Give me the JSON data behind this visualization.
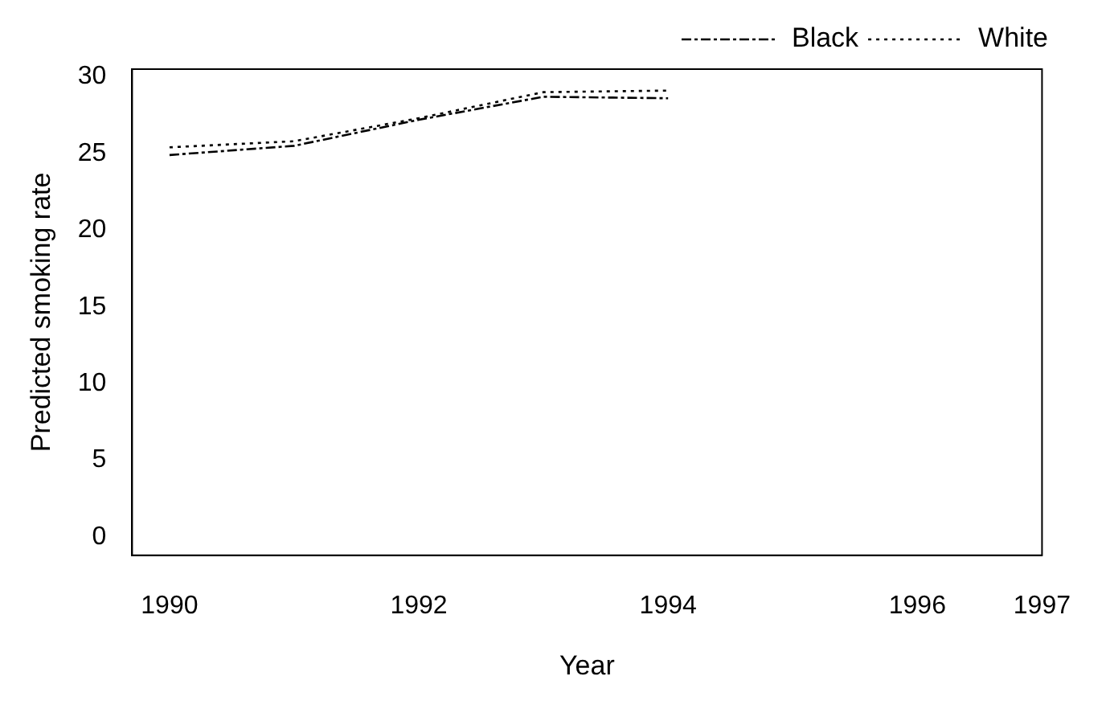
{
  "chart_data": {
    "type": "line",
    "xlabel": "Year",
    "ylabel": "Predicted smoking rate",
    "x": [
      1990,
      1991,
      1992,
      1993,
      1994
    ],
    "series": [
      {
        "name": "Black",
        "color": "#000000",
        "line_style": "dashdot",
        "values": [
          24.9,
          25.5,
          27.2,
          28.7,
          28.6
        ]
      },
      {
        "name": "White",
        "color": "#000000",
        "line_style": "dotted",
        "values": [
          25.4,
          25.8,
          27.3,
          29.0,
          29.1
        ]
      }
    ],
    "xlim": [
      1989.7,
      1997
    ],
    "xticks": [
      1990,
      1992,
      1994,
      1996,
      1997
    ],
    "ylim": [
      -1.2,
      30.5
    ],
    "yticks": [
      0,
      5,
      10,
      15,
      20,
      25,
      30
    ],
    "grid": false,
    "legend": "top right",
    "marker": "none"
  }
}
